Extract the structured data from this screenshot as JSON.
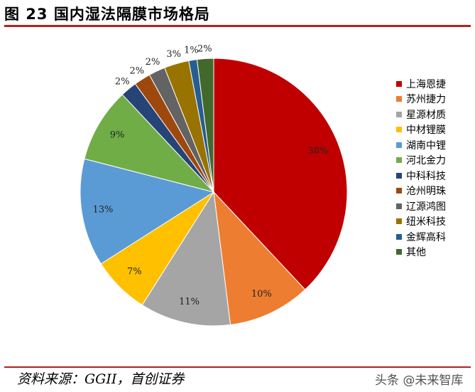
{
  "figure": {
    "title": "图 23 国内湿法隔膜市场格局",
    "source": "资料来源：GGII，首创证券",
    "watermark": "头条 @未来智库"
  },
  "chart_data": {
    "type": "pie",
    "title": "",
    "legend_placement": "right",
    "start_angle_deg": 0,
    "direction": "clockwise",
    "slices": [
      {
        "name": "上海恩捷",
        "value": 38,
        "label": "38%",
        "color": "#c00000"
      },
      {
        "name": "苏州捷力",
        "value": 10,
        "label": "10%",
        "color": "#ed7d31"
      },
      {
        "name": "星源材质",
        "value": 11,
        "label": "11%",
        "color": "#a5a5a5"
      },
      {
        "name": "中材锂膜",
        "value": 7,
        "label": "7%",
        "color": "#ffc000"
      },
      {
        "name": "湖南中锂",
        "value": 13,
        "label": "13%",
        "color": "#5b9bd5"
      },
      {
        "name": "河北金力",
        "value": 9,
        "label": "9%",
        "color": "#70ad47"
      },
      {
        "name": "中科科技",
        "value": 2,
        "label": "2%",
        "color": "#264478"
      },
      {
        "name": "沧州明珠",
        "value": 2,
        "label": "2%",
        "color": "#9e480e"
      },
      {
        "name": "辽源鸿图",
        "value": 2,
        "label": "2%",
        "color": "#636363"
      },
      {
        "name": "纽米科技",
        "value": 3,
        "label": "3%",
        "color": "#997300"
      },
      {
        "name": "金辉高科",
        "value": 1,
        "label": "1%",
        "color": "#255e91"
      },
      {
        "name": "其他",
        "value": 2,
        "label": "2%",
        "color": "#43682b"
      }
    ]
  }
}
